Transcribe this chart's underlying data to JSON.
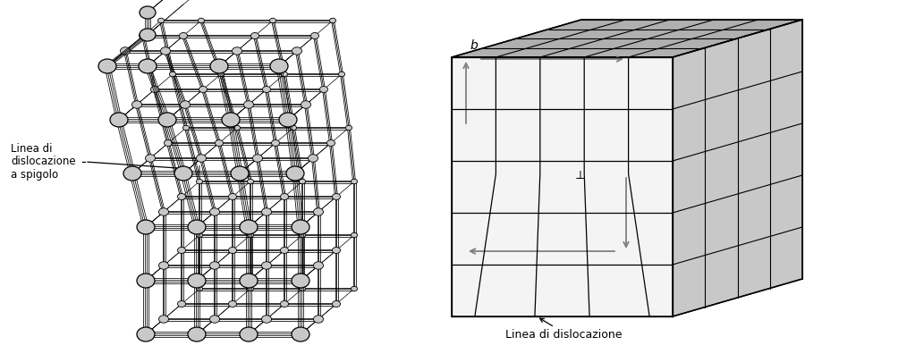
{
  "bg_color": "#ffffff",
  "atom_color": "#c8c8c8",
  "atom_edge_color": "#000000",
  "line_color": "#000000",
  "arrow_color": "#808080",
  "top_face_color": "#b0b0b0",
  "right_face_color": "#c8c8c8",
  "front_face_color": "#f4f4f4",
  "label1_lines": [
    "Linea di",
    "dislocazione",
    "a spigolo"
  ],
  "label2_text": "Linea di dislocazione",
  "perp_symbol": "⊥",
  "b_label": "b"
}
